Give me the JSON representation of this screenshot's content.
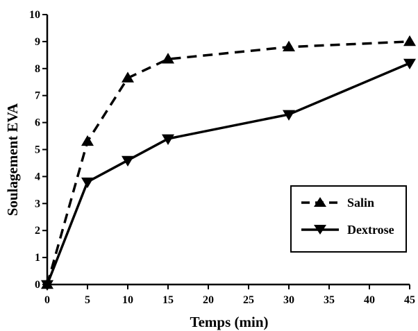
{
  "chart_data": {
    "type": "line",
    "xlabel": "Temps (min)",
    "ylabel": "Soulagement EVA",
    "x": [
      0,
      5,
      10,
      15,
      30,
      45
    ],
    "xlim": [
      0,
      45
    ],
    "ylim": [
      0,
      10
    ],
    "xticks": [
      0,
      5,
      10,
      15,
      20,
      25,
      30,
      35,
      40,
      45
    ],
    "yticks": [
      0,
      1,
      2,
      3,
      4,
      5,
      6,
      7,
      8,
      9,
      10
    ],
    "grid": false,
    "legend_position": "lower-right",
    "series": [
      {
        "name": "Salin",
        "values": [
          0,
          5.3,
          7.65,
          8.35,
          8.8,
          9.0
        ],
        "line_style": "dashed",
        "marker": "triangle-up",
        "color": "#000000"
      },
      {
        "name": "Dextrose",
        "values": [
          0,
          3.8,
          4.6,
          5.4,
          6.3,
          8.2
        ],
        "line_style": "solid",
        "marker": "triangle-down",
        "color": "#000000"
      }
    ]
  }
}
